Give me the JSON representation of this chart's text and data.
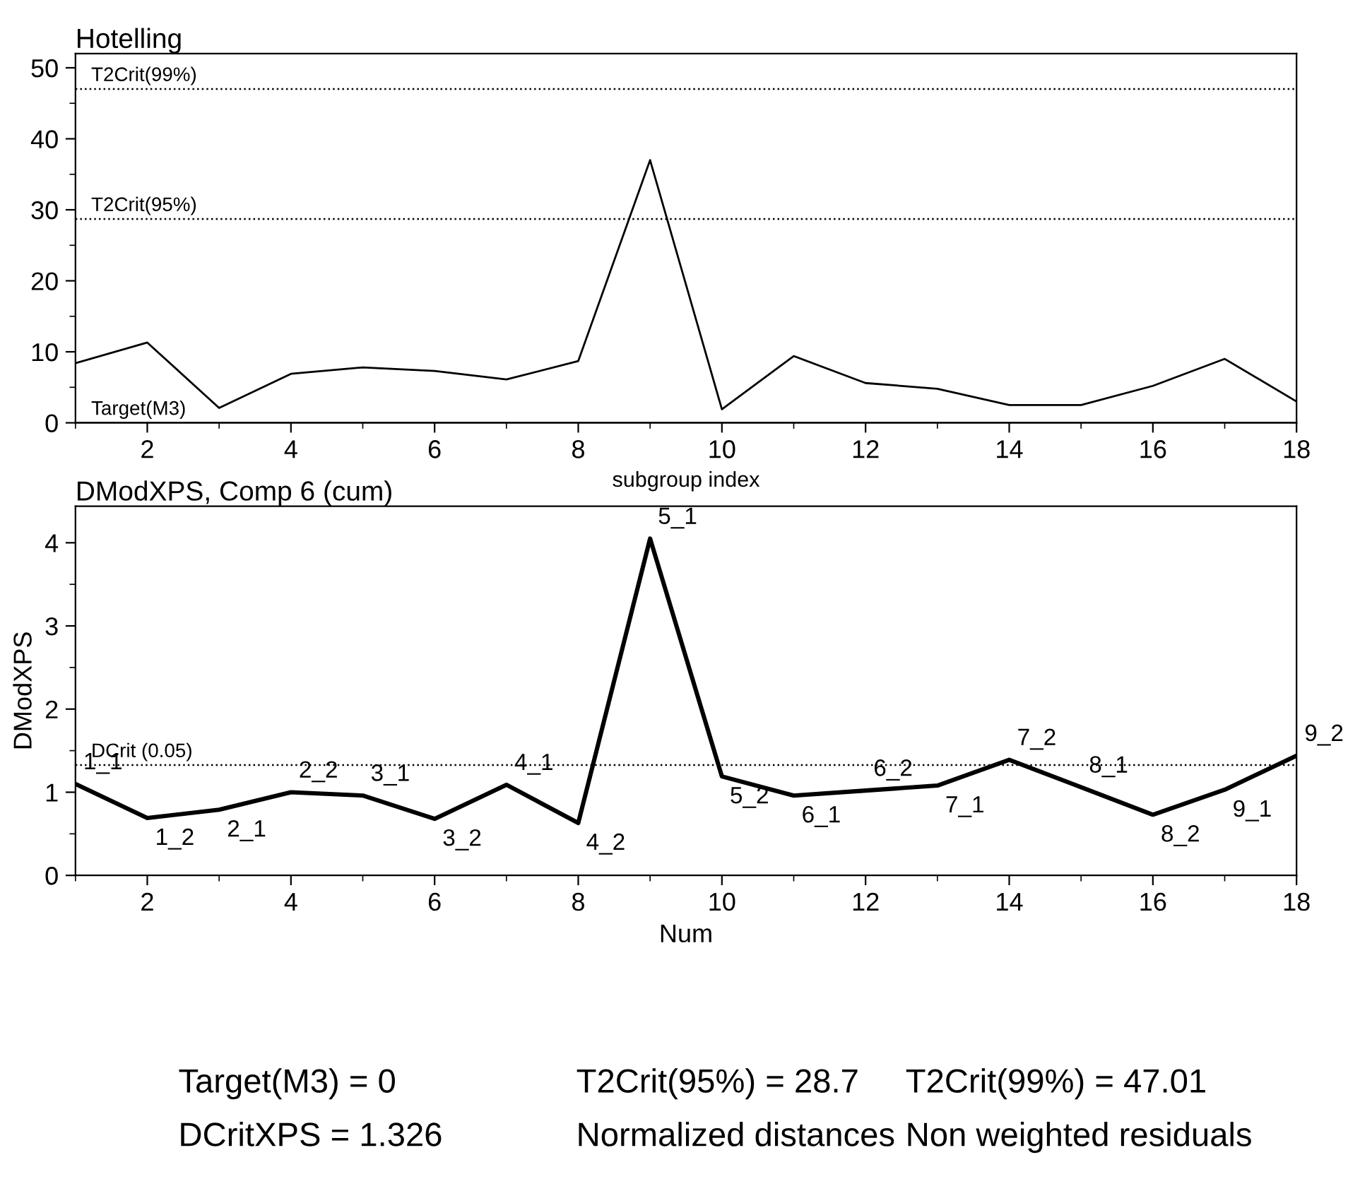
{
  "chart_data": [
    {
      "type": "line",
      "title": "Hotelling",
      "xlabel": "subgroup index",
      "x": [
        1,
        2,
        3,
        4,
        5,
        6,
        7,
        8,
        9,
        10,
        11,
        12,
        13,
        14,
        15,
        16,
        17,
        18
      ],
      "series": [
        {
          "color": "#000000",
          "values": [
            8.4,
            11.3,
            2.1,
            6.9,
            7.8,
            7.3,
            6.1,
            8.7,
            37,
            1.9,
            9.4,
            5.6,
            4.8,
            2.5,
            2.5,
            5.2,
            9,
            3
          ]
        }
      ],
      "xlim": [
        1,
        18
      ],
      "ylim": [
        0,
        52
      ],
      "xticks": [
        {
          "value": 1,
          "label": null
        },
        2,
        {
          "value": 3,
          "label": null
        },
        4,
        {
          "value": 5,
          "label": null
        },
        6,
        {
          "value": 7,
          "label": null
        },
        8,
        {
          "value": 9,
          "label": null
        },
        10,
        {
          "value": 11,
          "label": null
        },
        12,
        {
          "value": 13,
          "label": null
        },
        14,
        {
          "value": 15,
          "label": null
        },
        16,
        {
          "value": 17,
          "label": null
        },
        18
      ],
      "yticks": [
        0,
        {
          "value": 5,
          "label": null
        },
        10,
        {
          "value": 15,
          "label": null
        },
        20,
        {
          "value": 25,
          "label": null
        },
        30,
        {
          "value": 35,
          "label": null
        },
        40,
        {
          "value": 45,
          "label": null
        },
        50
      ],
      "ref_lines": [
        {
          "axis": "y",
          "value": 47.01,
          "label": "T2Crit(99%)",
          "line_style": "dotted"
        },
        {
          "axis": "y",
          "value": 28.7,
          "label": "T2Crit(95%)",
          "line_style": "dotted"
        },
        {
          "axis": "y",
          "value": 0,
          "label": "Target(M3)",
          "line_style": "solid"
        }
      ],
      "grid": false,
      "legend": false,
      "marker": "none",
      "line_style": "solid"
    },
    {
      "type": "line",
      "title": "DModXPS, Comp 6 (cum)",
      "xlabel": "Num",
      "ylabel": "DModXPS",
      "x": [
        1,
        2,
        3,
        4,
        5,
        6,
        7,
        8,
        9,
        10,
        11,
        12,
        13,
        14,
        15,
        16,
        17,
        18
      ],
      "series": [
        {
          "color": "#000000",
          "values": [
            1.1,
            0.69,
            0.79,
            1.0,
            0.96,
            0.68,
            1.09,
            0.63,
            4.05,
            1.19,
            0.96,
            1.02,
            1.08,
            1.39,
            1.06,
            0.73,
            1.03,
            1.44
          ]
        }
      ],
      "xlim": [
        1,
        18
      ],
      "ylim": [
        0,
        4.44
      ],
      "xticks": [
        {
          "value": 1,
          "label": null
        },
        2,
        {
          "value": 3,
          "label": null
        },
        4,
        {
          "value": 5,
          "label": null
        },
        6,
        {
          "value": 7,
          "label": null
        },
        8,
        {
          "value": 9,
          "label": null
        },
        10,
        {
          "value": 11,
          "label": null
        },
        12,
        {
          "value": 13,
          "label": null
        },
        14,
        {
          "value": 15,
          "label": null
        },
        16,
        {
          "value": 17,
          "label": null
        },
        18
      ],
      "yticks": [
        0,
        {
          "value": 0.5,
          "label": null
        },
        1,
        {
          "value": 1.5,
          "label": null
        },
        2,
        {
          "value": 2.5,
          "label": null
        },
        3,
        {
          "value": 3.5,
          "label": null
        },
        4
      ],
      "ref_lines": [
        {
          "axis": "y",
          "value": 1.326,
          "label": "DCrit (0.05)",
          "line_style": "dotted"
        }
      ],
      "grid": false,
      "legend": false,
      "marker": "none",
      "line_style": "solid",
      "annotations": [
        {
          "text": "1_1",
          "x": 1,
          "y": 1.1
        },
        {
          "text": "1_2",
          "x": 2,
          "y": 0.69
        },
        {
          "text": "2_1",
          "x": 3,
          "y": 0.79
        },
        {
          "text": "2_2",
          "x": 4,
          "y": 1.0
        },
        {
          "text": "3_1",
          "x": 5,
          "y": 0.96
        },
        {
          "text": "3_2",
          "x": 6,
          "y": 0.68
        },
        {
          "text": "4_1",
          "x": 7,
          "y": 1.09
        },
        {
          "text": "4_2",
          "x": 8,
          "y": 0.63
        },
        {
          "text": "5_1",
          "x": 9,
          "y": 4.05
        },
        {
          "text": "5_2",
          "x": 10,
          "y": 1.19
        },
        {
          "text": "6_1",
          "x": 11,
          "y": 0.96
        },
        {
          "text": "6_2",
          "x": 12,
          "y": 1.02
        },
        {
          "text": "7_1",
          "x": 13,
          "y": 1.08
        },
        {
          "text": "7_2",
          "x": 14,
          "y": 1.39
        },
        {
          "text": "8_1",
          "x": 15,
          "y": 1.06
        },
        {
          "text": "8_2",
          "x": 16,
          "y": 0.73
        },
        {
          "text": "9_1",
          "x": 17,
          "y": 1.03
        },
        {
          "text": "9_2",
          "x": 18,
          "y": 1.44
        },
        "Target(M3) = 0",
        "T2Crit(95%) = 28.7",
        "T2Crit(99%) = 47.01",
        "DCritXPS = 1.326",
        "Normalized distances",
        "Non weighted residuals"
      ]
    }
  ]
}
